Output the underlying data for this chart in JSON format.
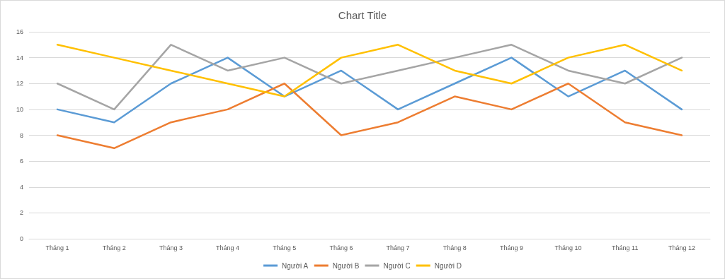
{
  "chart_data": {
    "type": "line",
    "title": "Chart Title",
    "categories": [
      "Tháng 1",
      "Tháng 2",
      "Tháng 3",
      "Tháng 4",
      "Tháng 5",
      "Tháng 6",
      "Tháng 7",
      "Tháng 8",
      "Tháng 9",
      "Tháng 10",
      "Tháng 11",
      "Tháng 12"
    ],
    "series": [
      {
        "name": "Người A",
        "color": "#5b9bd5",
        "values": [
          10,
          9,
          12,
          14,
          11,
          13,
          10,
          12,
          14,
          11,
          13,
          10
        ]
      },
      {
        "name": "Người B",
        "color": "#ed7d31",
        "values": [
          8,
          7,
          9,
          10,
          12,
          8,
          9,
          11,
          10,
          12,
          9,
          8
        ]
      },
      {
        "name": "Người C",
        "color": "#a5a5a5",
        "values": [
          12,
          10,
          15,
          13,
          14,
          12,
          13,
          14,
          15,
          13,
          12,
          14
        ]
      },
      {
        "name": "Người D",
        "color": "#ffc000",
        "values": [
          15,
          14,
          13,
          12,
          11,
          14,
          15,
          13,
          12,
          14,
          15,
          13
        ]
      }
    ],
    "ylim": [
      0,
      16
    ],
    "yticks": [
      0,
      2,
      4,
      6,
      8,
      10,
      12,
      14,
      16
    ],
    "grid": "y",
    "legend": "bottom",
    "marker": "none",
    "line_style": "solid"
  }
}
